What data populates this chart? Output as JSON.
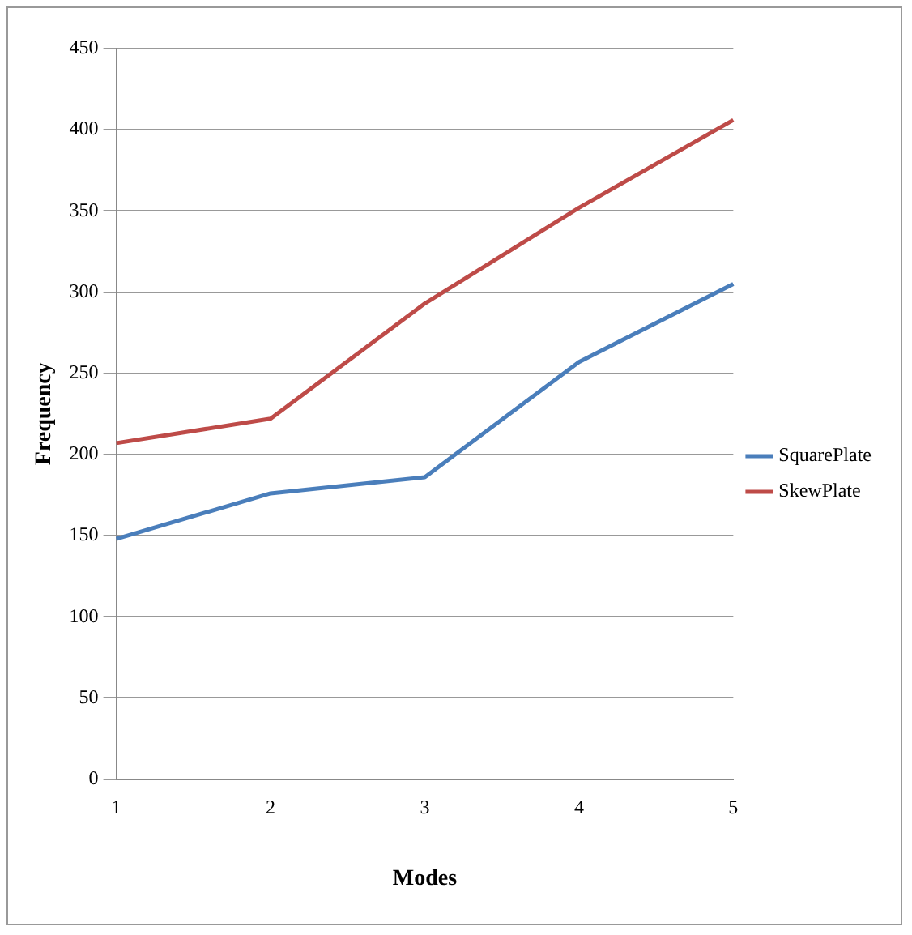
{
  "chart_data": {
    "type": "line",
    "xlabel": "Modes",
    "ylabel": "Frequency",
    "categories": [
      "1",
      "2",
      "3",
      "4",
      "5"
    ],
    "series": [
      {
        "name": "SquarePlate",
        "color": "#4a7ebb",
        "values": [
          148,
          176,
          186,
          257,
          305
        ]
      },
      {
        "name": "SkewPlate",
        "color": "#be4b48",
        "values": [
          207,
          222,
          293,
          352,
          406
        ]
      }
    ],
    "ylim": [
      0,
      450
    ],
    "yticks": [
      0,
      50,
      100,
      150,
      200,
      250,
      300,
      350,
      400,
      450
    ],
    "grid": "y",
    "legend": "right",
    "marker": "none"
  }
}
